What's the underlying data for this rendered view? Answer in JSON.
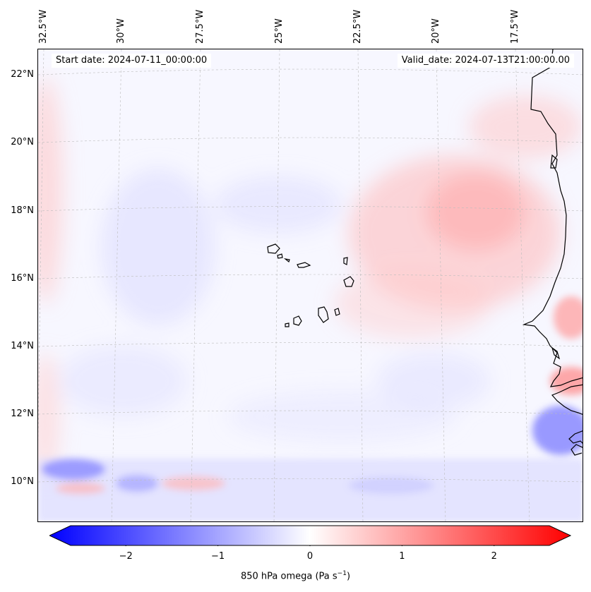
{
  "map": {
    "start_date": "Start date: 2024-07-11_00:00:00",
    "valid_date": "Valid_date: 2024-07-13T21:00:00.00",
    "lon_labels": [
      "32.5°W",
      "30°W",
      "27.5°W",
      "25°W",
      "22.5°W",
      "20°W",
      "17.5°W"
    ],
    "lat_labels": [
      "22°N",
      "20°N",
      "18°N",
      "16°N",
      "14°N",
      "12°N",
      "10°N"
    ],
    "colors": {
      "neutral": "#f7f7ff",
      "positive": "#ff0000",
      "negative": "#0000ff",
      "coast": "#000000",
      "grid": "#b0b0b0"
    }
  },
  "colorbar": {
    "ticks": [
      "−2",
      "−1",
      "0",
      "1",
      "2"
    ],
    "tick_values": [
      -2,
      -1,
      0,
      1,
      2
    ],
    "vmin": -2.6,
    "vmax": 2.6,
    "title_main": "850 hPa omega (Pa s",
    "title_sup": "−1",
    "title_end": ")"
  }
}
